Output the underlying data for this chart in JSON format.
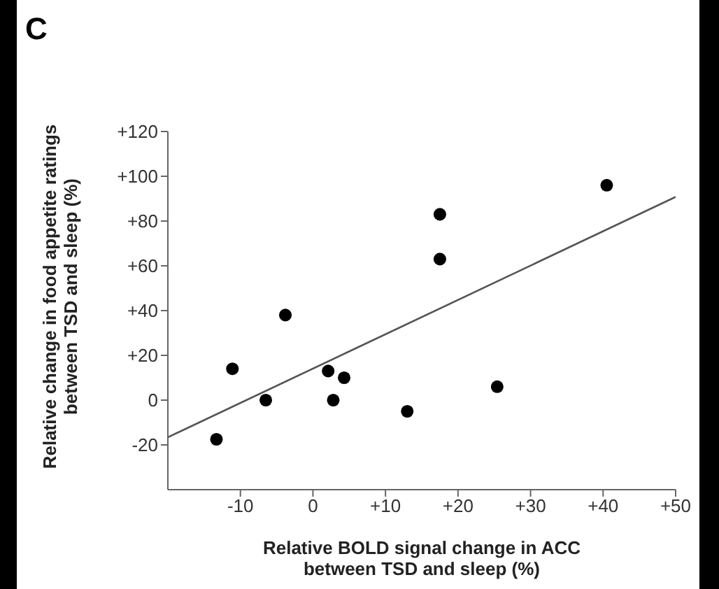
{
  "chart_data": {
    "type": "scatter",
    "title": "C",
    "xlabel": "Relative BOLD signal change in ACC between TSD and sleep (%)",
    "ylabel": "Relative change in food appetite ratings between TSD and sleep (%)",
    "xlim": [
      -20,
      50
    ],
    "xticks": [
      -10,
      0,
      {
        "value": 10,
        "label": "+10"
      },
      {
        "value": 20,
        "label": "+20"
      },
      {
        "value": 30,
        "label": "+30"
      },
      {
        "value": 40,
        "label": "+40"
      },
      {
        "value": 50,
        "label": "+50"
      }
    ],
    "ylim": [
      -40,
      120
    ],
    "yticks": [
      -20,
      0,
      {
        "value": 20,
        "label": "+20"
      },
      {
        "value": 40,
        "label": "+40"
      },
      {
        "value": 60,
        "label": "+60"
      },
      {
        "value": 80,
        "label": "+80"
      },
      {
        "value": 100,
        "label": "+100"
      },
      {
        "value": 120,
        "label": "+120"
      }
    ],
    "grid": false,
    "legend": false,
    "marker": "circle",
    "series": [
      {
        "color": "#000000",
        "x": [
          -13.3,
          -11.1,
          -6.5,
          -3.8,
          2.1,
          2.8,
          4.3,
          13.0,
          17.5,
          17.5,
          25.4,
          40.5
        ],
        "values": [
          -17.5,
          14,
          0,
          38,
          13,
          0,
          10,
          -5,
          63,
          83,
          6,
          96
        ]
      },
      {
        "type": "line",
        "color": "#555555",
        "marker": "none",
        "line_style": "solid",
        "x": [
          -20,
          50
        ],
        "values": [
          -16.6,
          90.8
        ]
      }
    ]
  }
}
